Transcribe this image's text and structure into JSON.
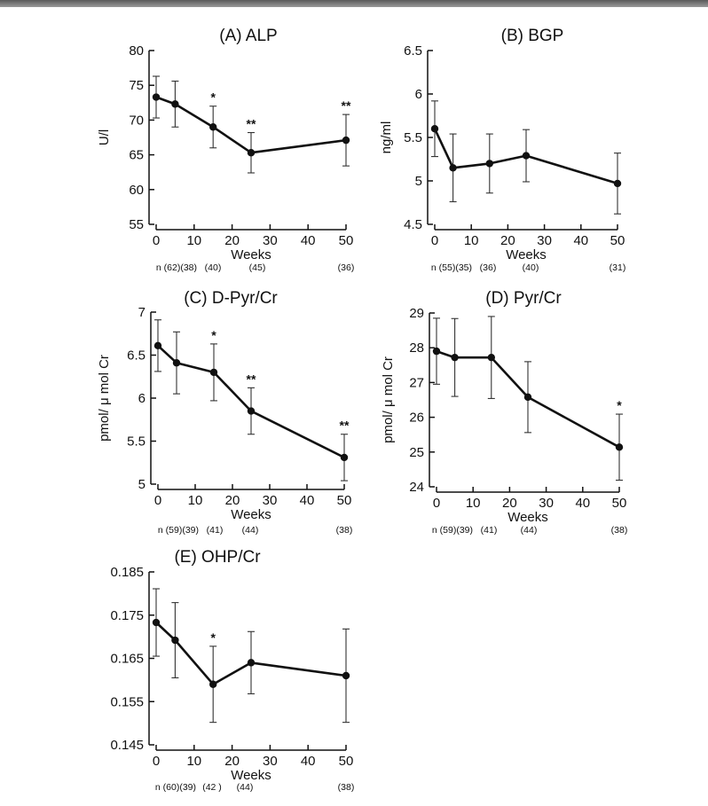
{
  "chart_data": [
    {
      "id": "A",
      "type": "line",
      "title": "(A)  ALP",
      "xlabel": "Weeks",
      "ylabel": "U/l",
      "xlim": [
        0,
        50
      ],
      "xticks": [
        0,
        10,
        20,
        30,
        40,
        50
      ],
      "ylim": [
        55,
        80
      ],
      "yticks": [
        55,
        60,
        65,
        70,
        75,
        80
      ],
      "ytick_labels": [
        "55",
        "60",
        "65",
        "70",
        "75",
        "80"
      ],
      "x": [
        0,
        5,
        15,
        25,
        50
      ],
      "y": [
        73.3,
        72.3,
        69.0,
        65.3,
        67.1
      ],
      "err": [
        3.0,
        3.3,
        3.0,
        2.9,
        3.7
      ],
      "stars": [
        "",
        "",
        "*",
        "**",
        "**"
      ],
      "n_labels": [
        "n (62)(38)",
        "(40)",
        "(45)",
        "(36)"
      ]
    },
    {
      "id": "B",
      "type": "line",
      "title": "(B)  BGP",
      "xlabel": "Weeks",
      "ylabel": "ng/ml",
      "xlim": [
        0,
        50
      ],
      "xticks": [
        0,
        10,
        20,
        30,
        40,
        50
      ],
      "ylim": [
        4.5,
        6.5
      ],
      "yticks": [
        4.5,
        5,
        5.5,
        6,
        6.5
      ],
      "ytick_labels": [
        "4.5",
        "5",
        "5.5",
        "6",
        "6.5"
      ],
      "x": [
        0,
        5,
        15,
        25,
        50
      ],
      "y": [
        5.6,
        5.15,
        5.2,
        5.29,
        4.97
      ],
      "err": [
        0.32,
        0.39,
        0.34,
        0.3,
        0.35
      ],
      "stars": [
        "",
        "",
        "",
        "",
        ""
      ],
      "n_labels": [
        "n (55)(35)",
        "(36)",
        "(40)",
        "(31)"
      ]
    },
    {
      "id": "C",
      "type": "line",
      "title": "(C)  D-Pyr/Cr",
      "xlabel": "Weeks",
      "ylabel": "pmol/ μ mol Cr",
      "xlim": [
        0,
        50
      ],
      "xticks": [
        0,
        10,
        20,
        30,
        40,
        50
      ],
      "ylim": [
        5,
        7
      ],
      "yticks": [
        5,
        5.5,
        6,
        6.5,
        7
      ],
      "ytick_labels": [
        "5",
        "5.5",
        "6",
        "6.5",
        "7"
      ],
      "x": [
        0,
        5,
        15,
        25,
        50
      ],
      "y": [
        6.61,
        6.41,
        6.3,
        5.85,
        5.31
      ],
      "err": [
        0.3,
        0.36,
        0.33,
        0.27,
        0.27
      ],
      "stars": [
        "",
        "",
        "*",
        "**",
        "**"
      ],
      "n_labels": [
        "n (59)(39)",
        "(41)",
        "(44)",
        "(38)"
      ]
    },
    {
      "id": "D",
      "type": "line",
      "title": "(D)  Pyr/Cr",
      "xlabel": "Weeks",
      "ylabel": "pmol/ μ mol Cr",
      "xlim": [
        0,
        50
      ],
      "xticks": [
        0,
        10,
        20,
        30,
        40,
        50
      ],
      "ylim": [
        24,
        29
      ],
      "yticks": [
        24,
        25,
        26,
        27,
        28,
        29
      ],
      "ytick_labels": [
        "24",
        "25",
        "26",
        "27",
        "28",
        "29"
      ],
      "x": [
        0,
        5,
        15,
        25,
        50
      ],
      "y": [
        27.9,
        27.72,
        27.72,
        26.58,
        25.14
      ],
      "err": [
        0.95,
        1.12,
        1.18,
        1.02,
        0.95
      ],
      "stars": [
        "",
        "",
        "",
        "",
        "*"
      ],
      "n_labels": [
        "n (59)(39)",
        "(41)",
        "(44)",
        "(38)"
      ]
    },
    {
      "id": "E",
      "type": "line",
      "title": "(E)  OHP/Cr",
      "xlabel": "Weeks",
      "ylabel": "",
      "xlim": [
        0,
        50
      ],
      "xticks": [
        0,
        10,
        20,
        30,
        40,
        50
      ],
      "ylim": [
        0.145,
        0.185
      ],
      "yticks": [
        0.145,
        0.155,
        0.165,
        0.175,
        0.185
      ],
      "ytick_labels": [
        "0.145",
        "0.155",
        "0.165",
        "0.175",
        "0.185"
      ],
      "x": [
        0,
        5,
        15,
        25,
        50
      ],
      "y": [
        0.1733,
        0.1692,
        0.159,
        0.164,
        0.161
      ],
      "err": [
        0.0078,
        0.0087,
        0.0088,
        0.0072,
        0.0108
      ],
      "stars": [
        "",
        "",
        "*",
        "",
        ""
      ],
      "n_labels": [
        "n (60)(39)",
        "(42 )",
        "(44)",
        "(38)"
      ]
    }
  ]
}
